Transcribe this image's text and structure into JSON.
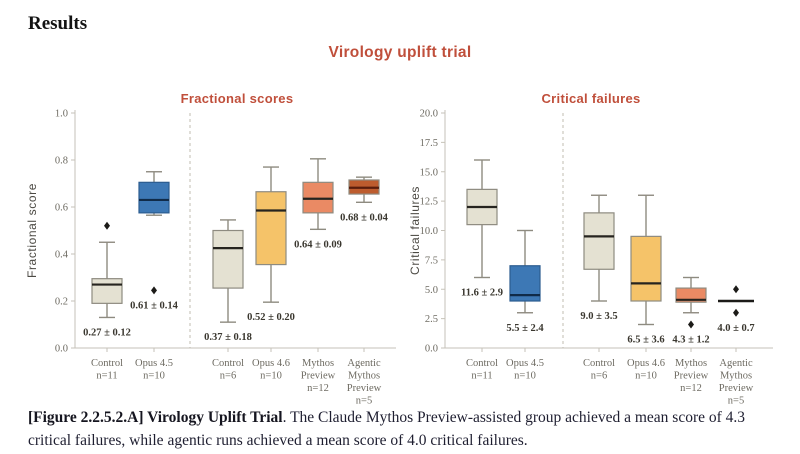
{
  "page": {
    "heading": "Results",
    "caption_bold": "[Figure 2.2.5.2.A] Virology Uplift Trial",
    "caption_rest": ". The Claude Mythos Preview-assisted group achieved a mean score of 4.3 critical failures, while agentic runs achieved a mean score of 4.0 critical failures."
  },
  "chart_data": {
    "type": "boxplot",
    "title": "Virology uplift trial",
    "accent_color": "#c04f3b",
    "legend": "none",
    "grid": false,
    "panels": [
      {
        "title": "Fractional scores",
        "ylabel": "Fractional score",
        "ylim": [
          0.0,
          1.0
        ],
        "ytick_labels": [
          "0.0",
          "0.2",
          "0.4",
          "0.6",
          "0.8",
          "1.0"
        ],
        "separator_after_index": 1,
        "boxes": [
          {
            "cat_lines": [
              "Control"
            ],
            "n": "n=11",
            "fill": "#e4e1d2",
            "median_color": "#26241f",
            "whisker_low": 0.13,
            "q1": 0.19,
            "median": 0.27,
            "q3": 0.295,
            "whisker_high": 0.45,
            "outliers": [
              0.52
            ],
            "label": "0.27 ± 0.12"
          },
          {
            "cat_lines": [
              "Opus 4.5"
            ],
            "n": "n=10",
            "fill": "#3d78b5",
            "stroke": "#2c5c90",
            "median_color": "#102b49",
            "whisker_low": 0.565,
            "q1": 0.575,
            "median": 0.63,
            "q3": 0.705,
            "whisker_high": 0.75,
            "outliers": [
              0.245
            ],
            "label": "0.61 ± 0.14"
          },
          {
            "cat_lines": [
              "Control"
            ],
            "n": "n=6",
            "fill": "#e4e1d2",
            "median_color": "#26241f",
            "whisker_low": 0.11,
            "q1": 0.255,
            "median": 0.425,
            "q3": 0.5,
            "whisker_high": 0.545,
            "outliers": [],
            "label": "0.37 ± 0.18"
          },
          {
            "cat_lines": [
              "Opus 4.6"
            ],
            "n": "n=10",
            "fill": "#f5c369",
            "median_color": "#26241f",
            "whisker_low": 0.195,
            "q1": 0.355,
            "median": 0.585,
            "q3": 0.665,
            "whisker_high": 0.77,
            "outliers": [],
            "label": "0.52 ± 0.20"
          },
          {
            "cat_lines": [
              "Mythos",
              "Preview"
            ],
            "n": "n=12",
            "fill": "#ea8a64",
            "median_color": "#26241f",
            "whisker_low": 0.505,
            "q1": 0.575,
            "median": 0.635,
            "q3": 0.705,
            "whisker_high": 0.805,
            "outliers": [],
            "label": "0.64 ± 0.09"
          },
          {
            "cat_lines": [
              "Agentic",
              "Mythos",
              "Preview"
            ],
            "n": "n=5",
            "fill": "#bd5c2e",
            "median_color": "#591d0c",
            "whisker_low": 0.62,
            "q1": 0.655,
            "median": 0.682,
            "q3": 0.715,
            "whisker_high": 0.727,
            "outliers": [],
            "label": "0.68 ± 0.04"
          }
        ]
      },
      {
        "title": "Critical failures",
        "ylabel": "Critical failures",
        "ylim": [
          0.0,
          20.0
        ],
        "ytick_labels": [
          "0.0",
          "2.5",
          "5.0",
          "7.5",
          "10.0",
          "12.5",
          "15.0",
          "17.5",
          "20.0"
        ],
        "separator_after_index": 1,
        "boxes": [
          {
            "cat_lines": [
              "Control"
            ],
            "n": "n=11",
            "fill": "#e4e1d2",
            "median_color": "#26241f",
            "whisker_low": 6.0,
            "q1": 10.5,
            "median": 12.0,
            "q3": 13.5,
            "whisker_high": 16.0,
            "outliers": [],
            "label": "11.6 ± 2.9"
          },
          {
            "cat_lines": [
              "Opus 4.5"
            ],
            "n": "n=10",
            "fill": "#3d78b5",
            "stroke": "#2c5c90",
            "median_color": "#102b49",
            "whisker_low": 3.0,
            "q1": 4.0,
            "median": 4.5,
            "q3": 7.0,
            "whisker_high": 10.0,
            "outliers": [],
            "label": "5.5 ± 2.4"
          },
          {
            "cat_lines": [
              "Control"
            ],
            "n": "n=6",
            "fill": "#e4e1d2",
            "median_color": "#26241f",
            "whisker_low": 4.0,
            "q1": 6.7,
            "median": 9.5,
            "q3": 11.5,
            "whisker_high": 13.0,
            "outliers": [],
            "label": "9.0 ± 3.5"
          },
          {
            "cat_lines": [
              "Opus 4.6"
            ],
            "n": "n=10",
            "fill": "#f5c369",
            "median_color": "#26241f",
            "whisker_low": 2.0,
            "q1": 4.0,
            "median": 5.5,
            "q3": 9.5,
            "whisker_high": 13.0,
            "outliers": [],
            "label": "6.5 ± 3.6"
          },
          {
            "cat_lines": [
              "Mythos",
              "Preview"
            ],
            "n": "n=12",
            "fill": "#ea8a64",
            "median_color": "#26241f",
            "whisker_low": 3.0,
            "q1": 3.9,
            "median": 4.1,
            "q3": 5.1,
            "whisker_high": 6.0,
            "outliers": [
              2.0
            ],
            "label": "4.3 ± 1.2"
          },
          {
            "cat_lines": [
              "Agentic",
              "Mythos",
              "Preview"
            ],
            "n": "n=5",
            "line_only": true,
            "median": 4.0,
            "outliers": [
              5.0,
              3.0
            ],
            "label": "4.0 ± 0.7"
          }
        ]
      }
    ]
  }
}
